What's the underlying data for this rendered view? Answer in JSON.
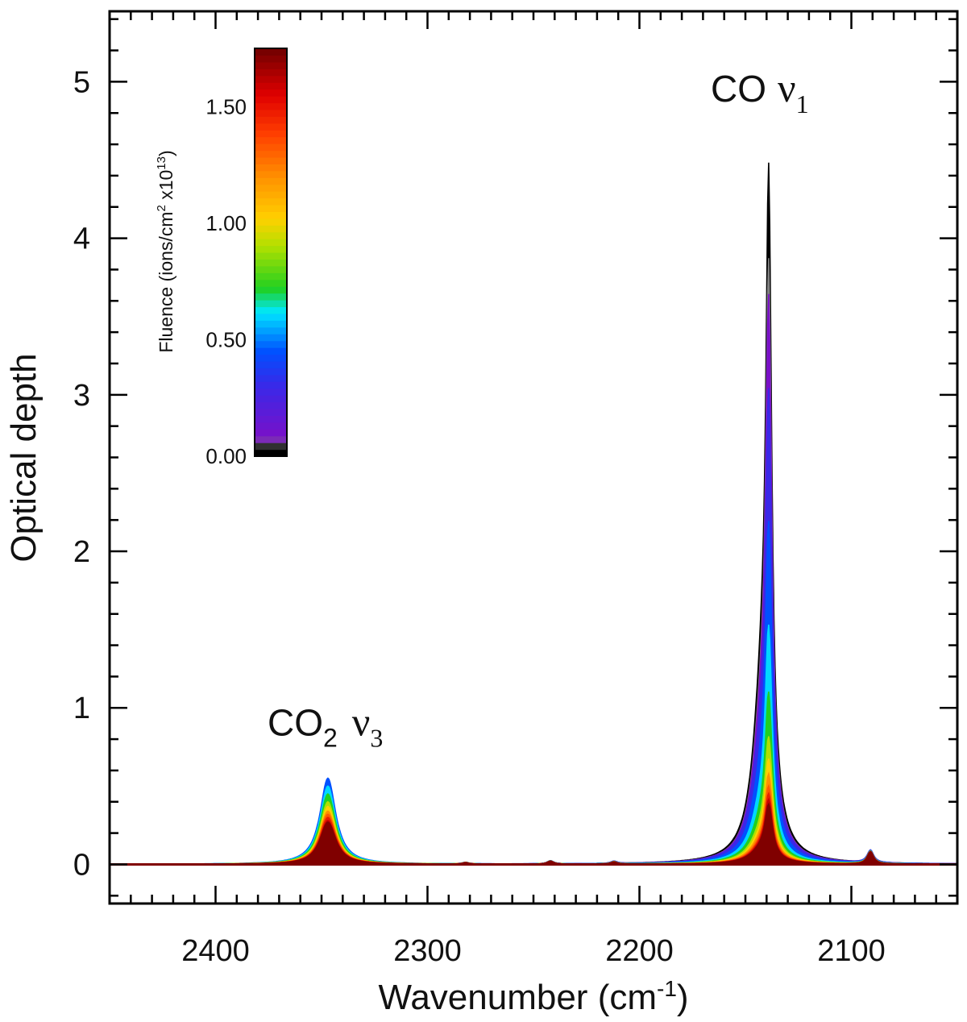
{
  "chart_data": {
    "type": "line",
    "xlabel": "Wavenumber (cm",
    "xlabel_sup": "-1",
    "xlabel_close": ")",
    "ylabel": "Optical depth",
    "xlim": [
      2450,
      2050
    ],
    "ylim": [
      -0.25,
      5.45
    ],
    "x_reversed": true,
    "x_ticks": [
      "2400",
      "2300",
      "2200",
      "2100"
    ],
    "y_ticks": [
      "0",
      "1",
      "2",
      "3",
      "4",
      "5"
    ],
    "annotations": [
      {
        "text": "CO",
        "sub": "2",
        "greek": "ν",
        "greek_sub": "3",
        "at_x": 2347,
        "at_y": 0.9
      },
      {
        "text": "CO",
        "sub": "",
        "greek": "ν",
        "greek_sub": "1",
        "at_x": 2139,
        "at_y": 4.95
      }
    ],
    "colorbar": {
      "title": "Fluence (ions/cm",
      "title_sup1": "2",
      "title_mid": " x10",
      "title_sup2": "13",
      "title_close": ")",
      "ticks": [
        "0.00",
        "0.50",
        "1.00",
        "1.50"
      ],
      "tick_values": [
        0.0,
        0.5,
        1.0,
        1.5
      ],
      "range": [
        0.0,
        1.75
      ],
      "colormap": "rainbow (black-purple-blue-cyan-green-yellow-orange-red-darkred)"
    },
    "series": [
      {
        "fluence": 0.0,
        "co_peak": 4.75,
        "co2_peak": 0.0,
        "color": "#000000"
      },
      {
        "fluence": 0.03,
        "co_peak": 4.1,
        "co2_peak": 0.0,
        "color": "#808080"
      },
      {
        "fluence": 0.1,
        "co_peak": 3.85,
        "co2_peak": 0.1,
        "color": "#7a10c8"
      },
      {
        "fluence": 0.3,
        "co_peak": 3.2,
        "co2_peak": 0.45,
        "color": "#3a28e8"
      },
      {
        "fluence": 0.45,
        "co_peak": 2.3,
        "co2_peak": 0.55,
        "color": "#0050ff"
      },
      {
        "fluence": 0.6,
        "co_peak": 1.6,
        "co2_peak": 0.5,
        "color": "#00d8ff"
      },
      {
        "fluence": 0.75,
        "co_peak": 1.15,
        "co2_peak": 0.45,
        "color": "#20d020"
      },
      {
        "fluence": 0.9,
        "co_peak": 0.85,
        "co2_peak": 0.4,
        "color": "#b0e000"
      },
      {
        "fluence": 1.05,
        "co_peak": 0.7,
        "co2_peak": 0.37,
        "color": "#ffd000"
      },
      {
        "fluence": 1.2,
        "co_peak": 0.6,
        "co2_peak": 0.34,
        "color": "#ff9000"
      },
      {
        "fluence": 1.35,
        "co_peak": 0.52,
        "co2_peak": 0.32,
        "color": "#ff5a00"
      },
      {
        "fluence": 1.5,
        "co_peak": 0.47,
        "co2_peak": 0.3,
        "color": "#e82000"
      },
      {
        "fluence": 1.65,
        "co_peak": 0.43,
        "co2_peak": 0.28,
        "color": "#c80000"
      },
      {
        "fluence": 1.75,
        "co_peak": 0.4,
        "co2_peak": 0.27,
        "color": "#800000"
      }
    ],
    "minor_features": [
      {
        "x": 2091,
        "peak": 0.08
      },
      {
        "x": 2242,
        "peak": 0.02
      },
      {
        "x": 2212,
        "peak": 0.015
      },
      {
        "x": 2282,
        "peak": 0.01
      }
    ],
    "co_center": 2139,
    "co2_center": 2347
  }
}
